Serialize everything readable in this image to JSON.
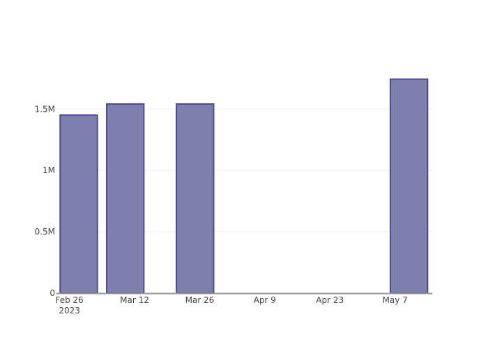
{
  "chart_data": {
    "type": "bar",
    "title": "",
    "xlabel": "",
    "ylabel": "",
    "x": [
      "2023-02-28",
      "2023-03-10",
      "2023-03-25",
      "2023-05-10"
    ],
    "values": [
      1452000,
      1542000,
      1542000,
      1744000
    ],
    "xlim": [
      "2023-02-24",
      "2023-05-15"
    ],
    "ylim": [
      0,
      1980000
    ],
    "x_ticks": [
      {
        "date": "2023-02-26",
        "label": "Feb 26",
        "sublabel": "2023"
      },
      {
        "date": "2023-03-12",
        "label": "Mar 12"
      },
      {
        "date": "2023-03-26",
        "label": "Mar 26"
      },
      {
        "date": "2023-04-09",
        "label": "Apr 9"
      },
      {
        "date": "2023-04-23",
        "label": "Apr 23"
      },
      {
        "date": "2023-05-07",
        "label": "May 7"
      }
    ],
    "y_ticks": [
      {
        "value": 0,
        "label": "0"
      },
      {
        "value": 500000,
        "label": "0.5M"
      },
      {
        "value": 1000000,
        "label": "1M"
      },
      {
        "value": 1500000,
        "label": "1.5M"
      }
    ],
    "grid": true,
    "legend": "none",
    "colors": {
      "bar_fill": "#7f7fae",
      "bar_line": "#4b4b95",
      "axis": "#999999"
    }
  }
}
